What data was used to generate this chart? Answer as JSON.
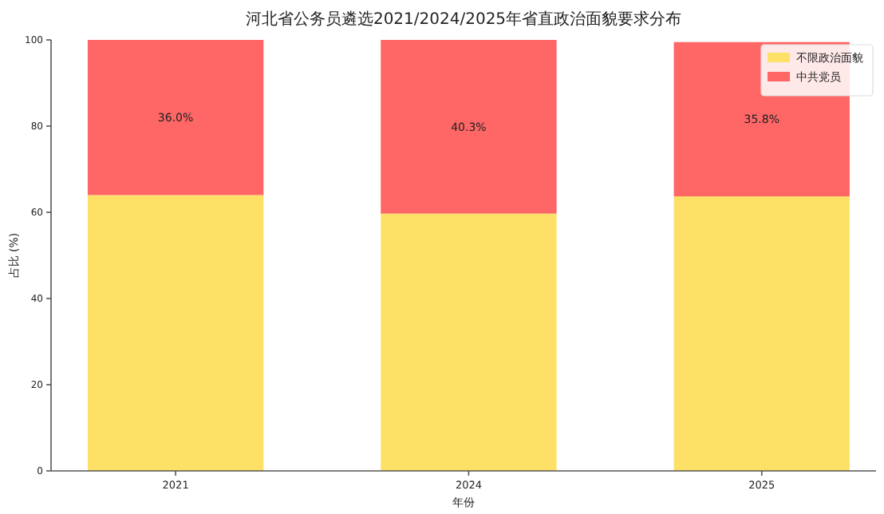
{
  "chart_data": {
    "type": "bar",
    "title": "河北省公务员遴选2021/2024/2025年省直政治面貌要求分布",
    "xlabel": "年份",
    "ylabel": "占比 (%)",
    "categories": [
      "2021",
      "2024",
      "2025"
    ],
    "stacked": true,
    "ylim": [
      0,
      100
    ],
    "yticks": [
      0,
      20,
      40,
      60,
      80,
      100
    ],
    "legend": "top right",
    "series": [
      {
        "name": "不限政治面貌",
        "color": "#fde167",
        "values": [
          64.0,
          59.7,
          63.7
        ]
      },
      {
        "name": "中共党员",
        "color": "#ff6666",
        "values": [
          36.0,
          40.3,
          35.8
        ],
        "value_labels": [
          "36.0%",
          "40.3%",
          "35.8%"
        ]
      }
    ]
  }
}
